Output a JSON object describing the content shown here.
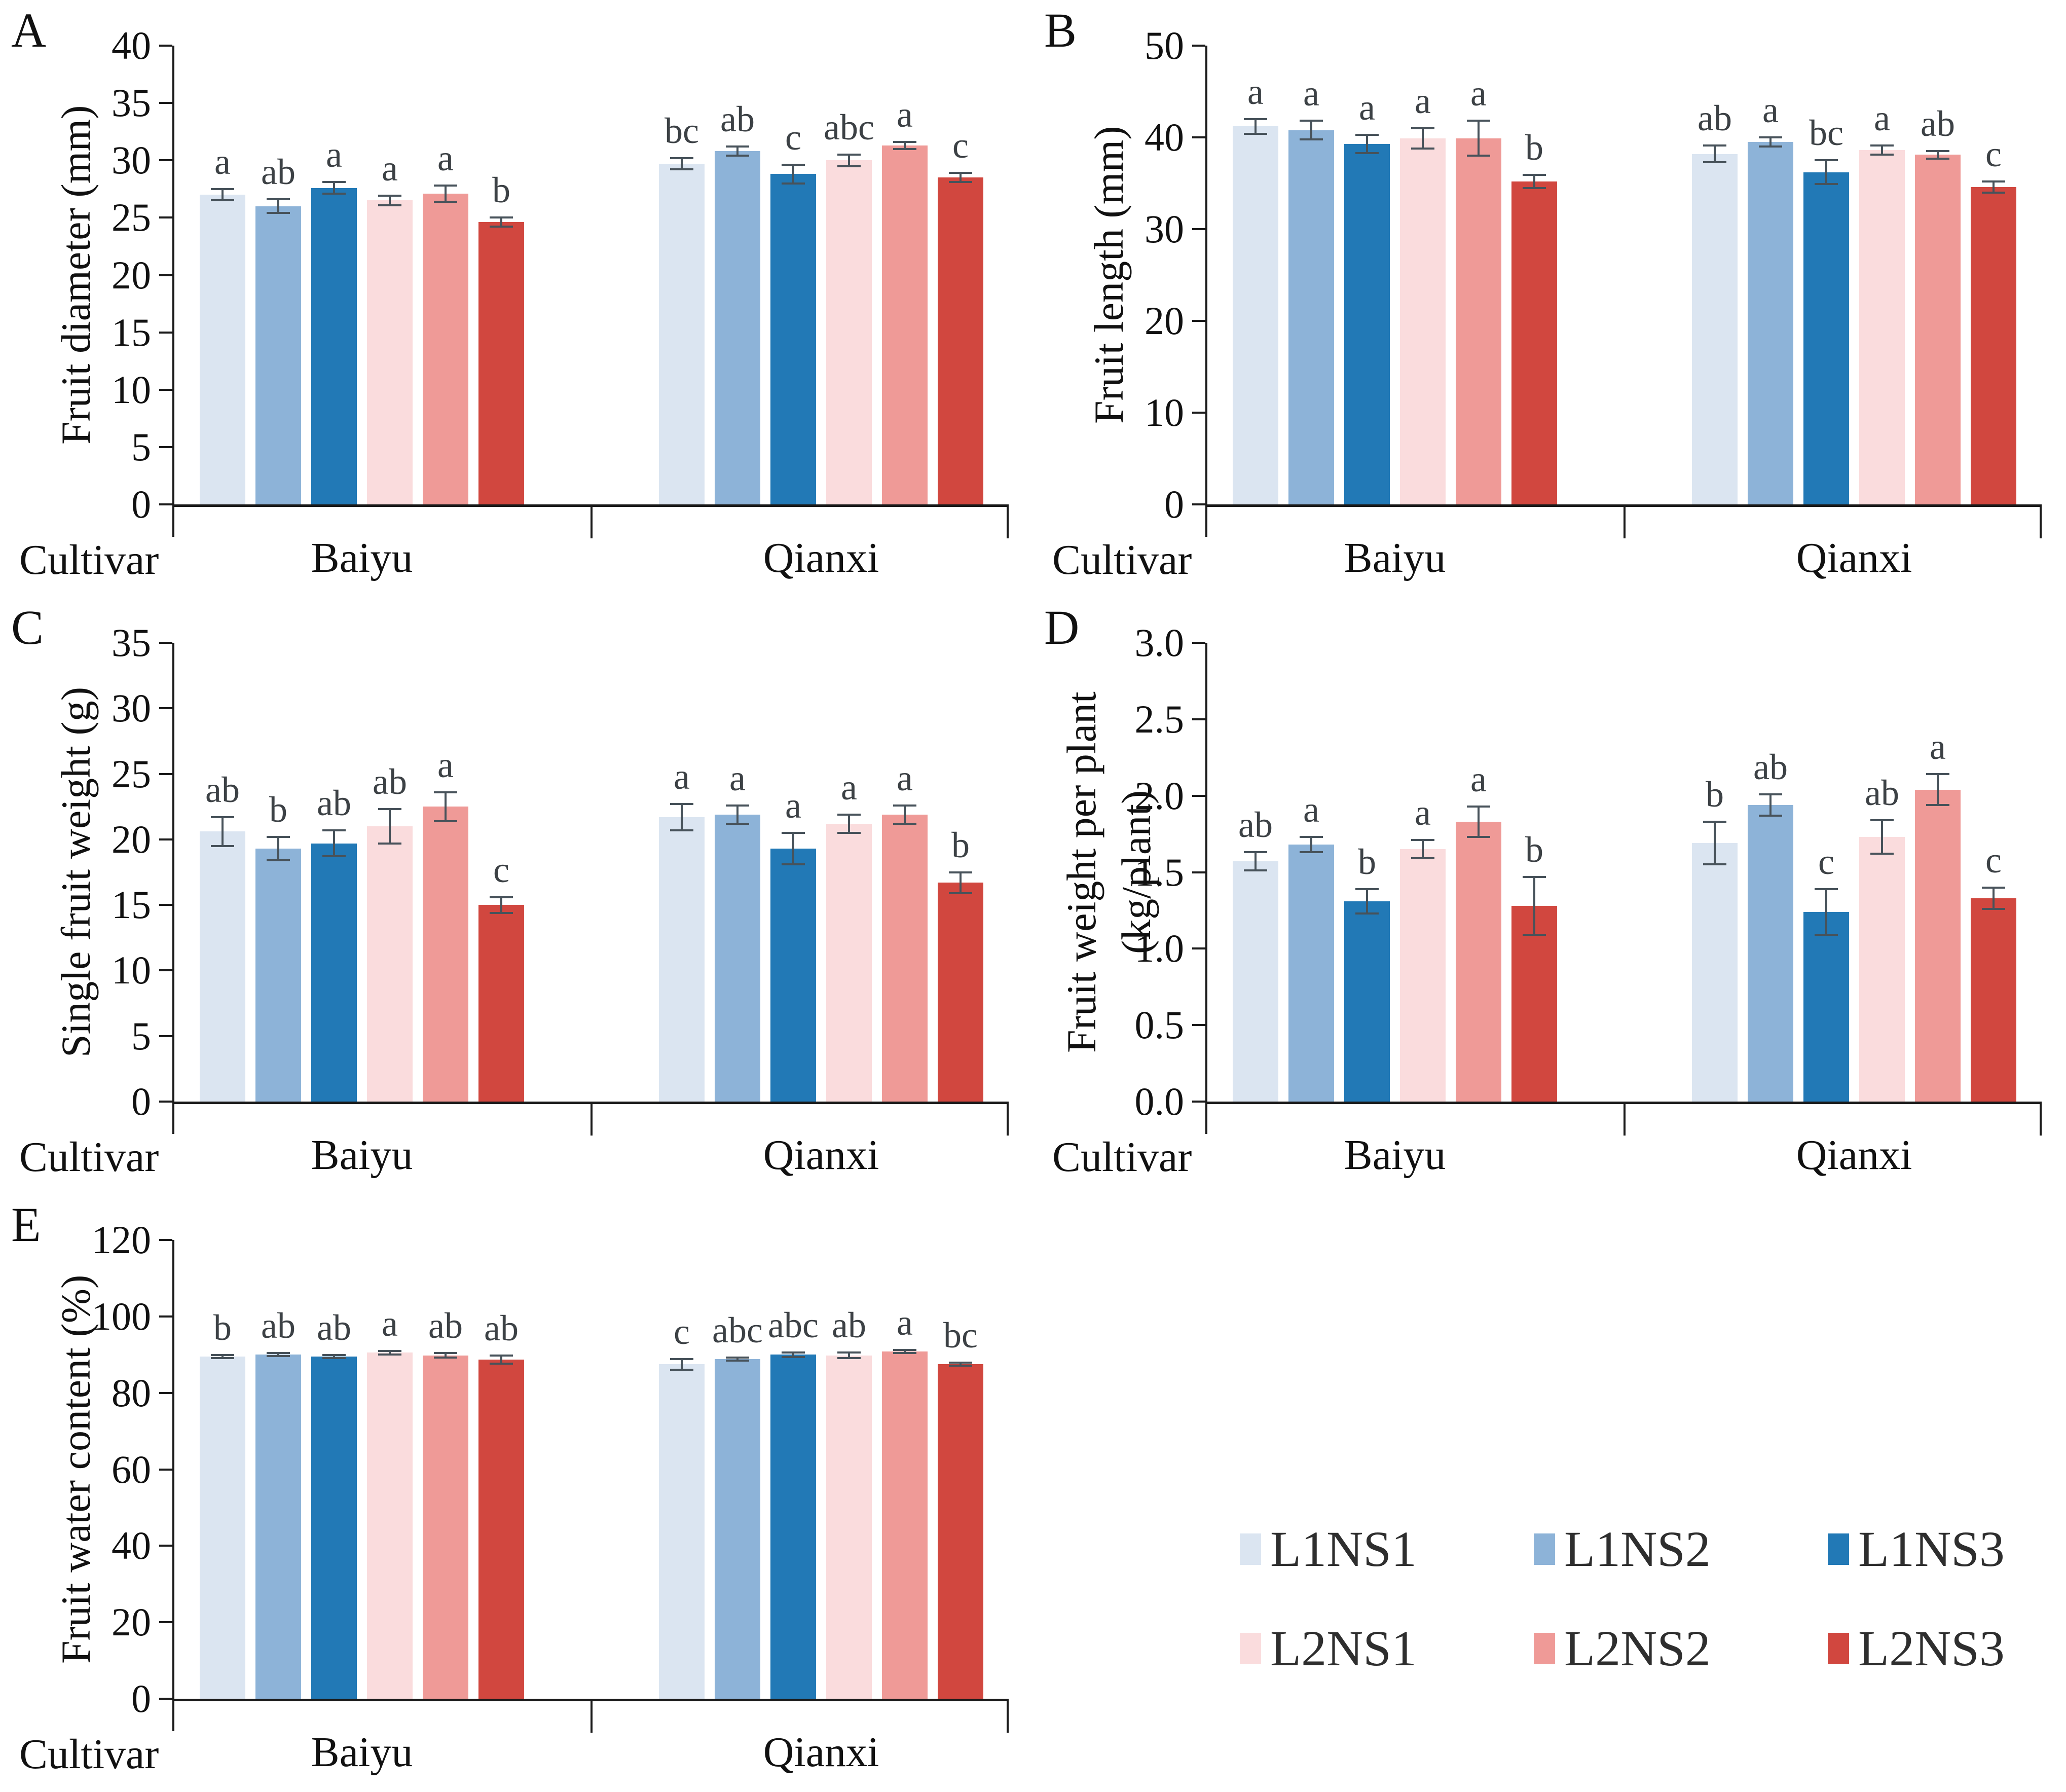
{
  "figure": {
    "background": "#ffffff",
    "cultivar_label": "Cultivar",
    "group_names": [
      "Baiyu",
      "Qianxi"
    ],
    "treatments": [
      "L1NS1",
      "L1NS2",
      "L1NS3",
      "L2NS1",
      "L2NS2",
      "L2NS3"
    ],
    "treatment_colors": {
      "L1NS1": "#dbe5f1",
      "L1NS2": "#8db3d8",
      "L1NS3": "#2279b6",
      "L2NS1": "#fadcdd",
      "L2NS2": "#ef9a97",
      "L2NS3": "#d1473f"
    },
    "error_bar_color": "#47525a",
    "letter_color": "#3c4145",
    "axis_color": "#1a1a1a"
  },
  "legend": {
    "items": [
      {
        "label": "L1NS1",
        "treatment": "L1NS1"
      },
      {
        "label": "L1NS2",
        "treatment": "L1NS2"
      },
      {
        "label": "L1NS3",
        "treatment": "L1NS3"
      },
      {
        "label": "L2NS1",
        "treatment": "L2NS1"
      },
      {
        "label": "L2NS2",
        "treatment": "L2NS2"
      },
      {
        "label": "L2NS3",
        "treatment": "L2NS3"
      }
    ]
  },
  "chart_data": [
    {
      "panel": "A",
      "type": "bar",
      "title_lines": [
        "Fruit diameter (mm)"
      ],
      "xlabel": "Cultivar",
      "ylim": [
        0,
        40
      ],
      "ytick_step": 5,
      "ydecimals": 0,
      "grid": false,
      "categories": [
        "Baiyu",
        "Qianxi"
      ],
      "series_order": [
        "L1NS1",
        "L1NS2",
        "L1NS3",
        "L2NS1",
        "L2NS2",
        "L2NS3"
      ],
      "groups": [
        {
          "name": "Baiyu",
          "values": [
            27.0,
            26.0,
            27.6,
            26.5,
            27.1,
            24.6
          ],
          "errors": [
            0.5,
            0.6,
            0.5,
            0.4,
            0.7,
            0.4
          ],
          "letters": [
            "a",
            "ab",
            "a",
            "a",
            "a",
            "b"
          ]
        },
        {
          "name": "Qianxi",
          "values": [
            29.7,
            30.8,
            28.8,
            30.0,
            31.3,
            28.5
          ],
          "errors": [
            0.5,
            0.4,
            0.8,
            0.5,
            0.3,
            0.4
          ],
          "letters": [
            "bc",
            "ab",
            "c",
            "abc",
            "a",
            "c"
          ]
        }
      ]
    },
    {
      "panel": "B",
      "type": "bar",
      "title_lines": [
        "Fruit length (mm)"
      ],
      "xlabel": "Cultivar",
      "ylim": [
        0,
        50
      ],
      "ytick_step": 10,
      "ydecimals": 0,
      "grid": false,
      "categories": [
        "Baiyu",
        "Qianxi"
      ],
      "series_order": [
        "L1NS1",
        "L1NS2",
        "L1NS3",
        "L2NS1",
        "L2NS2",
        "L2NS3"
      ],
      "groups": [
        {
          "name": "Baiyu",
          "values": [
            41.2,
            40.8,
            39.3,
            39.9,
            39.9,
            35.2
          ],
          "errors": [
            0.8,
            1.0,
            1.0,
            1.1,
            1.9,
            0.7
          ],
          "letters": [
            "a",
            "a",
            "a",
            "a",
            "a",
            "b"
          ]
        },
        {
          "name": "Qianxi",
          "values": [
            38.2,
            39.5,
            36.2,
            38.6,
            38.1,
            34.6
          ],
          "errors": [
            0.9,
            0.5,
            1.3,
            0.5,
            0.4,
            0.6
          ],
          "letters": [
            "ab",
            "a",
            "bc",
            "a",
            "ab",
            "c"
          ]
        }
      ]
    },
    {
      "panel": "C",
      "type": "bar",
      "title_lines": [
        "Single fruit weight (g)"
      ],
      "xlabel": "Cultivar",
      "ylim": [
        0,
        35
      ],
      "ytick_step": 5,
      "ydecimals": 0,
      "grid": false,
      "categories": [
        "Baiyu",
        "Qianxi"
      ],
      "series_order": [
        "L1NS1",
        "L1NS2",
        "L1NS3",
        "L2NS1",
        "L2NS2",
        "L2NS3"
      ],
      "groups": [
        {
          "name": "Baiyu",
          "values": [
            20.6,
            19.3,
            19.7,
            21.0,
            22.5,
            15.0
          ],
          "errors": [
            1.1,
            0.9,
            1.0,
            1.3,
            1.1,
            0.6
          ],
          "letters": [
            "ab",
            "b",
            "ab",
            "ab",
            "a",
            "c"
          ]
        },
        {
          "name": "Qianxi",
          "values": [
            21.7,
            21.9,
            19.3,
            21.2,
            21.9,
            16.7
          ],
          "errors": [
            1.0,
            0.7,
            1.2,
            0.7,
            0.7,
            0.8
          ],
          "letters": [
            "a",
            "a",
            "a",
            "a",
            "a",
            "b"
          ]
        }
      ]
    },
    {
      "panel": "D",
      "type": "bar",
      "title_lines": [
        "Fruit weight per plant",
        "(kg/plant)"
      ],
      "xlabel": "Cultivar",
      "ylim": [
        0,
        3.0
      ],
      "ytick_step": 0.5,
      "ydecimals": 1,
      "grid": false,
      "categories": [
        "Baiyu",
        "Qianxi"
      ],
      "series_order": [
        "L1NS1",
        "L1NS2",
        "L1NS3",
        "L2NS1",
        "L2NS2",
        "L2NS3"
      ],
      "groups": [
        {
          "name": "Baiyu",
          "values": [
            1.57,
            1.68,
            1.31,
            1.65,
            1.83,
            1.28
          ],
          "errors": [
            0.06,
            0.05,
            0.08,
            0.06,
            0.1,
            0.19
          ],
          "letters": [
            "ab",
            "a",
            "b",
            "a",
            "a",
            "b"
          ]
        },
        {
          "name": "Qianxi",
          "values": [
            1.69,
            1.94,
            1.24,
            1.73,
            2.04,
            1.33
          ],
          "errors": [
            0.14,
            0.07,
            0.15,
            0.11,
            0.1,
            0.07
          ],
          "letters": [
            "b",
            "ab",
            "c",
            "ab",
            "a",
            "c"
          ]
        }
      ]
    },
    {
      "panel": "E",
      "type": "bar",
      "title_lines": [
        "Fruit water content (%)"
      ],
      "xlabel": "Cultivar",
      "ylim": [
        0,
        120
      ],
      "ytick_step": 20,
      "ydecimals": 0,
      "grid": false,
      "categories": [
        "Baiyu",
        "Qianxi"
      ],
      "series_order": [
        "L1NS1",
        "L1NS2",
        "L1NS3",
        "L2NS1",
        "L2NS2",
        "L2NS3"
      ],
      "groups": [
        {
          "name": "Baiyu",
          "values": [
            89.5,
            90.0,
            89.5,
            90.5,
            89.8,
            88.7
          ],
          "errors": [
            0.4,
            0.4,
            0.4,
            0.4,
            0.6,
            1.1
          ],
          "letters": [
            "b",
            "ab",
            "ab",
            "a",
            "ab",
            "ab"
          ]
        },
        {
          "name": "Qianxi",
          "values": [
            87.5,
            88.8,
            90.0,
            89.8,
            90.8,
            87.5
          ],
          "errors": [
            1.4,
            0.4,
            0.6,
            0.7,
            0.4,
            0.4
          ],
          "letters": [
            "c",
            "abc",
            "abc",
            "ab",
            "a",
            "bc"
          ]
        }
      ]
    }
  ]
}
